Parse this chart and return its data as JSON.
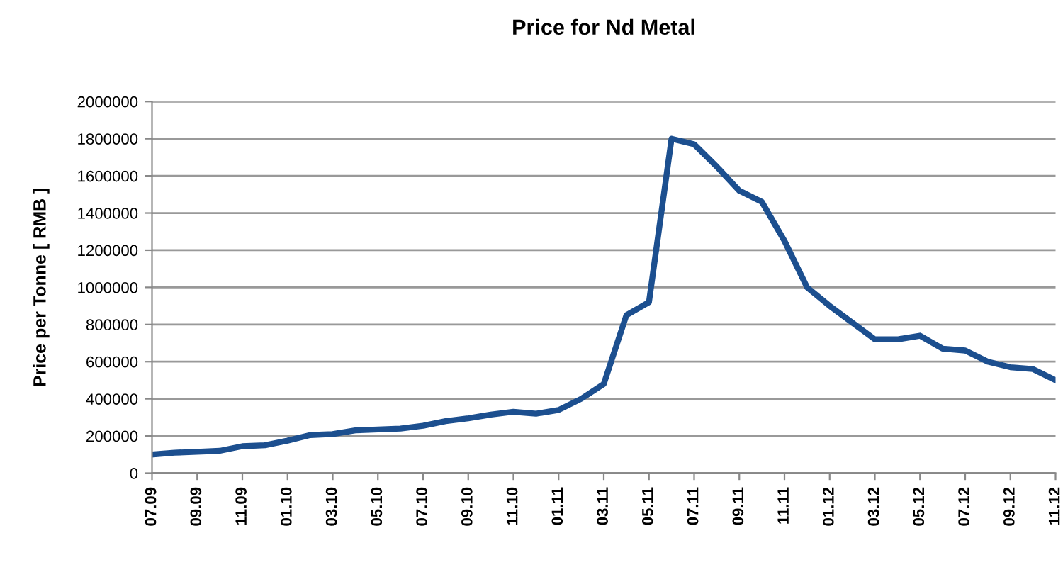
{
  "chart_data": {
    "type": "line",
    "title": "Price for Nd Metal",
    "ylabel": "Price per Tonne [ RMB ]",
    "categories": [
      "07.09",
      null,
      "09.09",
      null,
      "11.09",
      null,
      "01.10",
      null,
      "03.10",
      null,
      "05.10",
      null,
      "07.10",
      null,
      "09.10",
      null,
      "11.10",
      null,
      "01.11",
      null,
      "03.11",
      null,
      "05.11",
      null,
      "07.11",
      null,
      "09.11",
      null,
      "11.11",
      null,
      "01.12",
      null,
      "03.12",
      null,
      "05.12",
      null,
      "07.12",
      null,
      "09.12",
      null,
      "11.12"
    ],
    "series": [
      {
        "color": "#1c4f8f",
        "values": [
          100000,
          110000,
          115000,
          120000,
          145000,
          150000,
          175000,
          205000,
          210000,
          230000,
          235000,
          240000,
          255000,
          280000,
          295000,
          315000,
          330000,
          320000,
          340000,
          400000,
          480000,
          850000,
          920000,
          1800000,
          1770000,
          1650000,
          1520000,
          1460000,
          1250000,
          1000000,
          900000,
          810000,
          720000,
          720000,
          740000,
          670000,
          660000,
          600000,
          570000,
          560000,
          500000
        ]
      }
    ],
    "ylim": [
      0,
      2000000
    ],
    "yticks": [
      0,
      200000,
      400000,
      600000,
      800000,
      1000000,
      1200000,
      1400000,
      1600000,
      1800000,
      2000000
    ],
    "grid": "y",
    "legend": false,
    "marker": "none",
    "line_style": "solid"
  }
}
